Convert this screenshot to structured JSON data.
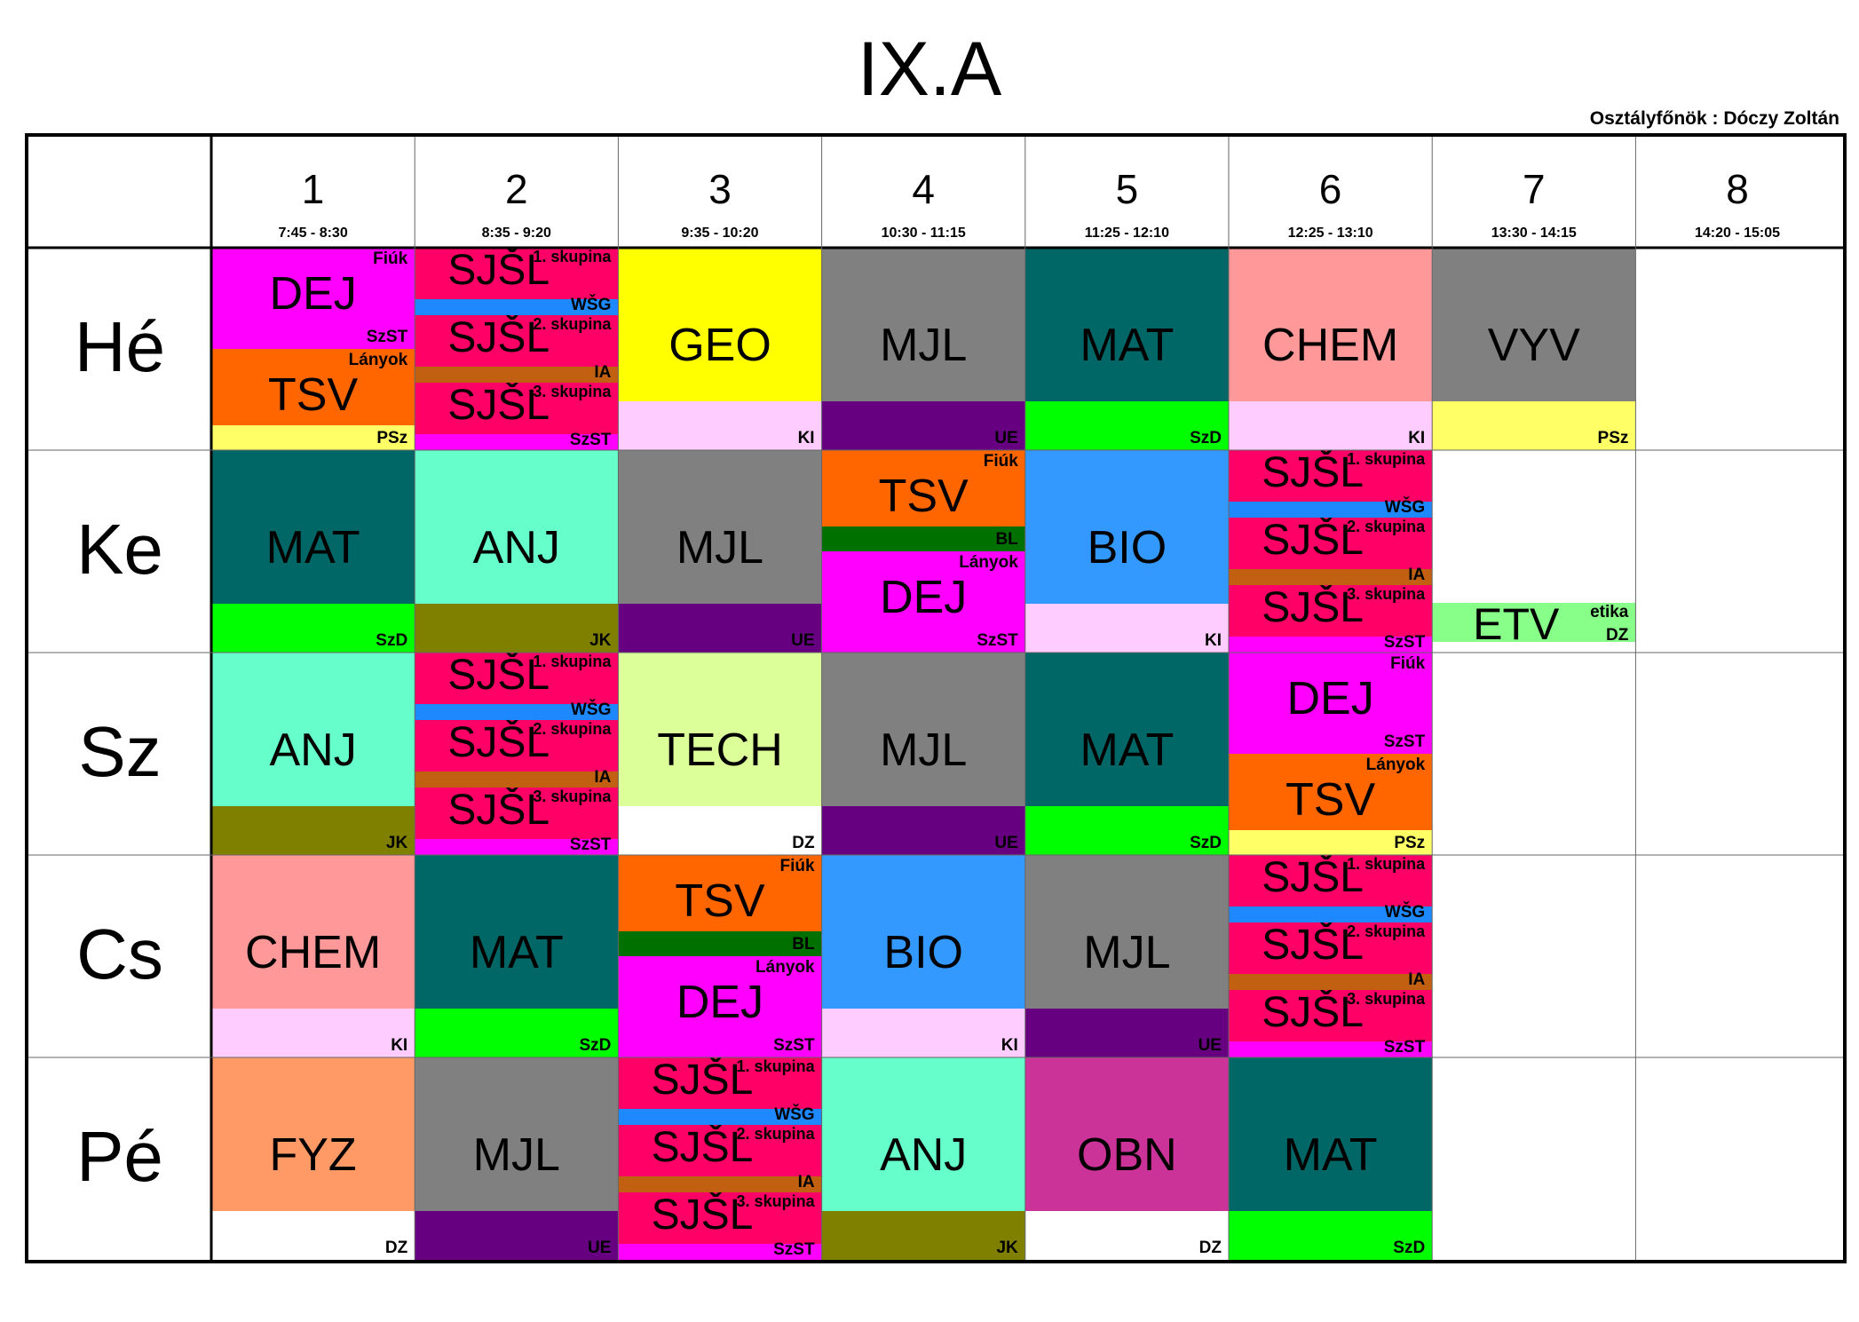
{
  "title": "IX.A",
  "teacher": "Osztályfőnök : Dóczy Zoltán",
  "periods": [
    {
      "num": "1",
      "time": "7:45 - 8:30"
    },
    {
      "num": "2",
      "time": "8:35 - 9:20"
    },
    {
      "num": "3",
      "time": "9:35 - 10:20"
    },
    {
      "num": "4",
      "time": "10:30 - 11:15"
    },
    {
      "num": "5",
      "time": "11:25 - 12:10"
    },
    {
      "num": "6",
      "time": "12:25 - 13:10"
    },
    {
      "num": "7",
      "time": "13:30 - 14:15"
    },
    {
      "num": "8",
      "time": "14:20 - 15:05"
    }
  ],
  "days": [
    "Hé",
    "Ke",
    "Sz",
    "Cs",
    "Pé"
  ],
  "sjsl": {
    "subject": "SJŠL",
    "groups": [
      {
        "label": "1. skupina",
        "teacher": "WŠG",
        "color": "#ff0066",
        "band": "#1e88ff"
      },
      {
        "label": "2. skupina",
        "teacher": "IA",
        "color": "#ff0066",
        "band": "#c06010"
      },
      {
        "label": "3. skupina",
        "teacher": "SzST",
        "color": "#ff0066",
        "band": "#ff00ff"
      }
    ]
  },
  "cells": [
    {
      "day": 0,
      "period": 0,
      "type": "split",
      "blocks": [
        {
          "subject": "DEJ",
          "group": "Fiúk",
          "teacher": "SzST",
          "color": "#ff00ff",
          "band": "#ff00ff"
        },
        {
          "subject": "TSV",
          "group": "Lányok",
          "teacher": "PSz",
          "color": "#ff6600",
          "band": "#ffff66"
        }
      ]
    },
    {
      "day": 0,
      "period": 1,
      "type": "sjsl"
    },
    {
      "day": 0,
      "period": 2,
      "type": "single",
      "subject": "GEO",
      "teacher": "KI",
      "color": "#ffff00",
      "band": "#ffccff"
    },
    {
      "day": 0,
      "period": 3,
      "type": "single",
      "subject": "MJL",
      "teacher": "UE",
      "color": "#808080",
      "band": "#660080"
    },
    {
      "day": 0,
      "period": 4,
      "type": "single",
      "subject": "MAT",
      "teacher": "SzD",
      "color": "#006666",
      "band": "#00ff00"
    },
    {
      "day": 0,
      "period": 5,
      "type": "single",
      "subject": "CHEM",
      "teacher": "KI",
      "color": "#ff9999",
      "band": "#ffccff"
    },
    {
      "day": 0,
      "period": 6,
      "type": "single",
      "subject": "VYV",
      "teacher": "PSz",
      "color": "#808080",
      "band": "#ffff66"
    },
    {
      "day": 1,
      "period": 0,
      "type": "single",
      "subject": "MAT",
      "teacher": "SzD",
      "color": "#006666",
      "band": "#00ff00"
    },
    {
      "day": 1,
      "period": 1,
      "type": "single",
      "subject": "ANJ",
      "teacher": "JK",
      "color": "#66ffcc",
      "band": "#808000"
    },
    {
      "day": 1,
      "period": 2,
      "type": "single",
      "subject": "MJL",
      "teacher": "UE",
      "color": "#808080",
      "band": "#660080"
    },
    {
      "day": 1,
      "period": 3,
      "type": "split",
      "blocks": [
        {
          "subject": "TSV",
          "group": "Fiúk",
          "teacher": "BL",
          "color": "#ff6600",
          "band": "#007000"
        },
        {
          "subject": "DEJ",
          "group": "Lányok",
          "teacher": "SzST",
          "color": "#ff00ff",
          "band": "#ff00ff"
        }
      ]
    },
    {
      "day": 1,
      "period": 4,
      "type": "single",
      "subject": "BIO",
      "teacher": "KI",
      "color": "#3399ff",
      "band": "#ffccff"
    },
    {
      "day": 1,
      "period": 5,
      "type": "sjsl"
    },
    {
      "day": 1,
      "period": 6,
      "type": "thin",
      "subject": "ETV",
      "group": "etika",
      "teacher": "DZ",
      "color": "#88ff88"
    },
    {
      "day": 2,
      "period": 0,
      "type": "single",
      "subject": "ANJ",
      "teacher": "JK",
      "color": "#66ffcc",
      "band": "#808000"
    },
    {
      "day": 2,
      "period": 1,
      "type": "sjsl"
    },
    {
      "day": 2,
      "period": 2,
      "type": "single",
      "subject": "TECH",
      "teacher": "DZ",
      "color": "#ddff99",
      "band": "#ffffff"
    },
    {
      "day": 2,
      "period": 3,
      "type": "single",
      "subject": "MJL",
      "teacher": "UE",
      "color": "#808080",
      "band": "#660080"
    },
    {
      "day": 2,
      "period": 4,
      "type": "single",
      "subject": "MAT",
      "teacher": "SzD",
      "color": "#006666",
      "band": "#00ff00"
    },
    {
      "day": 2,
      "period": 5,
      "type": "split",
      "blocks": [
        {
          "subject": "DEJ",
          "group": "Fiúk",
          "teacher": "SzST",
          "color": "#ff00ff",
          "band": "#ff00ff"
        },
        {
          "subject": "TSV",
          "group": "Lányok",
          "teacher": "PSz",
          "color": "#ff6600",
          "band": "#ffff66"
        }
      ]
    },
    {
      "day": 3,
      "period": 0,
      "type": "single",
      "subject": "CHEM",
      "teacher": "KI",
      "color": "#ff9999",
      "band": "#ffccff"
    },
    {
      "day": 3,
      "period": 1,
      "type": "single",
      "subject": "MAT",
      "teacher": "SzD",
      "color": "#006666",
      "band": "#00ff00"
    },
    {
      "day": 3,
      "period": 2,
      "type": "split",
      "blocks": [
        {
          "subject": "TSV",
          "group": "Fiúk",
          "teacher": "BL",
          "color": "#ff6600",
          "band": "#007000"
        },
        {
          "subject": "DEJ",
          "group": "Lányok",
          "teacher": "SzST",
          "color": "#ff00ff",
          "band": "#ff00ff"
        }
      ]
    },
    {
      "day": 3,
      "period": 3,
      "type": "single",
      "subject": "BIO",
      "teacher": "KI",
      "color": "#3399ff",
      "band": "#ffccff"
    },
    {
      "day": 3,
      "period": 4,
      "type": "single",
      "subject": "MJL",
      "teacher": "UE",
      "color": "#808080",
      "band": "#660080"
    },
    {
      "day": 3,
      "period": 5,
      "type": "sjsl"
    },
    {
      "day": 4,
      "period": 0,
      "type": "single",
      "subject": "FYZ",
      "teacher": "DZ",
      "color": "#ff9966",
      "band": "#ffffff"
    },
    {
      "day": 4,
      "period": 1,
      "type": "single",
      "subject": "MJL",
      "teacher": "UE",
      "color": "#808080",
      "band": "#660080"
    },
    {
      "day": 4,
      "period": 2,
      "type": "sjsl"
    },
    {
      "day": 4,
      "period": 3,
      "type": "single",
      "subject": "ANJ",
      "teacher": "JK",
      "color": "#66ffcc",
      "band": "#808000"
    },
    {
      "day": 4,
      "period": 4,
      "type": "single",
      "subject": "OBN",
      "teacher": "DZ",
      "color": "#cc3399",
      "band": "#ffffff"
    },
    {
      "day": 4,
      "period": 5,
      "type": "single",
      "subject": "MAT",
      "teacher": "SzD",
      "color": "#006666",
      "band": "#00ff00"
    }
  ]
}
